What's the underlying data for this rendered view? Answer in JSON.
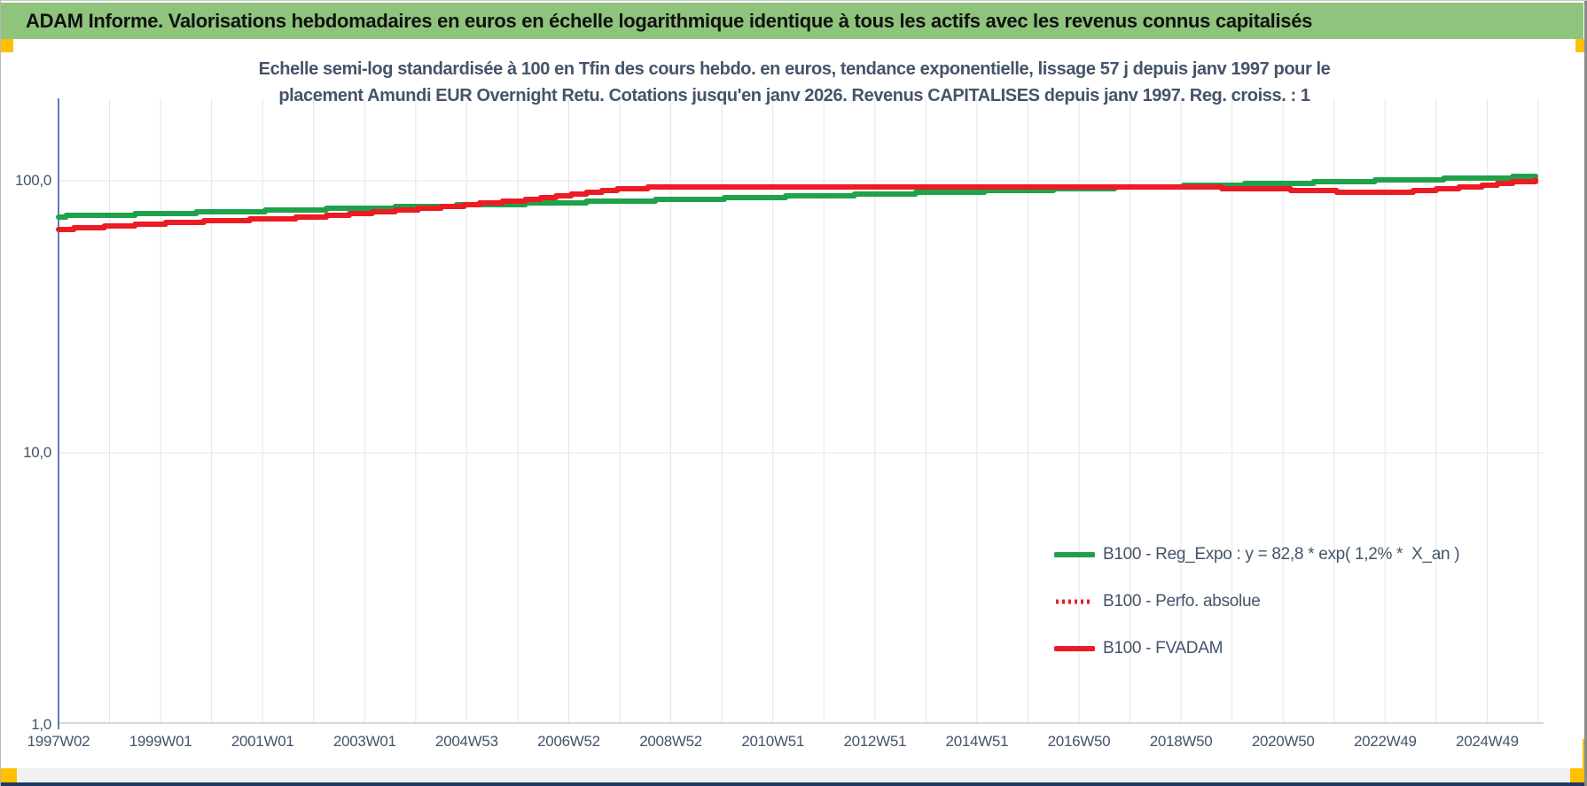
{
  "header": {
    "title": "ADAM Informe. Valorisations hebdomadaires en euros en échelle logarithmique identique à tous les actifs avec les revenus connus capitalisés"
  },
  "chart": {
    "title_line1": "Echelle semi-log standardisée à 100 en Tfin des cours hebdo. en euros, tendance exponentielle, lissage 57 j depuis janv 1997 pour le",
    "title_line2": "placement Amundi EUR Overnight Retu. Cotations jusqu'en janv 2026. Revenus CAPITALISES depuis janv 1997. Reg. croiss. : 1"
  },
  "colors": {
    "banner_green": "#8FC47C",
    "handle_yellow": "#FFC000",
    "line_green": "#1FA24A",
    "line_red": "#EC1C24",
    "text_dark": "#44546A",
    "axis_blue": "#5B7BB4",
    "grid_gray": "#E2E5E9",
    "baseline_gray": "#C8CCD4",
    "bottom_bar_navy": "#1F3864"
  },
  "chart_data": {
    "type": "line",
    "x_axis": {
      "unit": "ISO week of year",
      "start_year": 1997.02,
      "end_year": 2026.1,
      "tick_step_years": 2,
      "grid_step_years": 1,
      "tick_labels": [
        "1997W02",
        "1999W01",
        "2001W01",
        "2003W01",
        "2004W53",
        "2006W52",
        "2008W52",
        "2010W51",
        "2012W51",
        "2014W51",
        "2016W50",
        "2018W50",
        "2020W50",
        "2022W49",
        "2024W49"
      ]
    },
    "y_axis": {
      "scale": "log10",
      "ticks": [
        {
          "label": "100,0",
          "value": 100
        },
        {
          "label": "10,0",
          "value": 10
        },
        {
          "label": "1,0",
          "value": 1
        }
      ]
    },
    "series": [
      {
        "name": "B100 - Reg_Expo : y = 82,8 * exp( 1,2% *  X_an )",
        "color": "#1FA24A",
        "style": "solid",
        "points": [
          [
            1997.02,
            74.0
          ],
          [
            2001,
            77.5
          ],
          [
            2006,
            82.2
          ],
          [
            2011,
            87.1
          ],
          [
            2016,
            92.3
          ],
          [
            2021,
            97.9
          ],
          [
            2026.1,
            103.9
          ]
        ]
      },
      {
        "name": "B100 - Perfo. absolue",
        "color": "#EC1C24",
        "style": "dotted",
        "points": [
          [
            1997.02,
            66.4
          ],
          [
            1998,
            68.0
          ],
          [
            1999,
            69.7
          ],
          [
            2000,
            71.2
          ],
          [
            2001,
            72.2
          ],
          [
            2002,
            73.5
          ],
          [
            2003,
            76.0
          ],
          [
            2004,
            78.5
          ],
          [
            2005,
            81.5
          ],
          [
            2006,
            84.5
          ],
          [
            2007,
            88.5
          ],
          [
            2008,
            93.0
          ],
          [
            2009,
            95.4
          ],
          [
            2010,
            95.2
          ],
          [
            2011,
            95.0
          ],
          [
            2012,
            95.3
          ],
          [
            2013,
            95.6
          ],
          [
            2014,
            95.4
          ],
          [
            2015,
            95.1
          ],
          [
            2016,
            95.3
          ],
          [
            2017,
            95.6
          ],
          [
            2018,
            95.4
          ],
          [
            2019,
            94.9
          ],
          [
            2020,
            93.9
          ],
          [
            2021,
            92.9
          ],
          [
            2022,
            91.4
          ],
          [
            2022.8,
            90.9
          ],
          [
            2023.5,
            91.4
          ],
          [
            2024,
            92.8
          ],
          [
            2024.6,
            94.8
          ],
          [
            2025.2,
            97.5
          ],
          [
            2025.7,
            99.2
          ],
          [
            2026.1,
            100.6
          ]
        ]
      },
      {
        "name": "B100 - FVADAM",
        "color": "#EC1C24",
        "style": "solid",
        "points": [
          [
            1997.02,
            66.4
          ],
          [
            1998,
            68.0
          ],
          [
            1999,
            69.7
          ],
          [
            2000,
            71.2
          ],
          [
            2001,
            72.2
          ],
          [
            2002,
            73.5
          ],
          [
            2003,
            76.0
          ],
          [
            2004,
            78.5
          ],
          [
            2005,
            81.5
          ],
          [
            2006,
            84.5
          ],
          [
            2007,
            88.5
          ],
          [
            2008,
            93.0
          ],
          [
            2009,
            95.4
          ],
          [
            2010,
            95.2
          ],
          [
            2011,
            95.0
          ],
          [
            2012,
            95.3
          ],
          [
            2013,
            95.6
          ],
          [
            2014,
            95.4
          ],
          [
            2015,
            95.1
          ],
          [
            2016,
            95.3
          ],
          [
            2017,
            95.6
          ],
          [
            2018,
            95.4
          ],
          [
            2019,
            94.9
          ],
          [
            2020,
            93.9
          ],
          [
            2021,
            92.9
          ],
          [
            2022,
            91.4
          ],
          [
            2022.8,
            90.9
          ],
          [
            2023.5,
            91.4
          ],
          [
            2024,
            92.8
          ],
          [
            2024.6,
            94.8
          ],
          [
            2025.2,
            97.5
          ],
          [
            2025.7,
            99.2
          ],
          [
            2026.1,
            100.6
          ]
        ]
      }
    ]
  }
}
